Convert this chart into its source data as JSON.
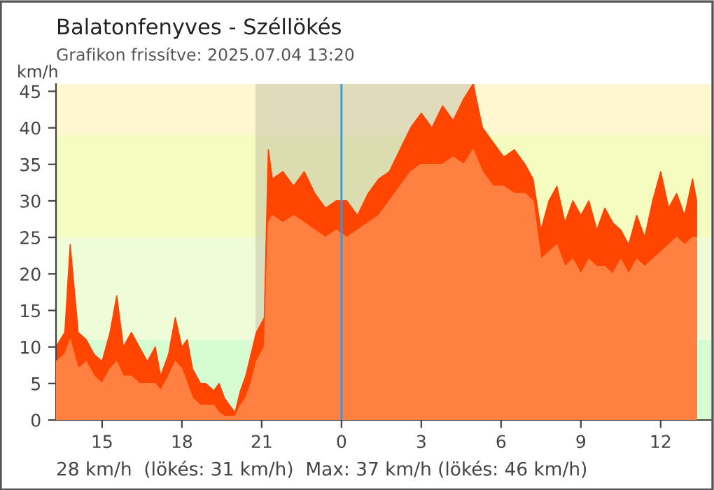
{
  "chart_data": {
    "type": "area",
    "title": "Balatonfenyves - Széllökés",
    "subtitle": "Grafikon frissítve: 2025.07.04 13:20",
    "ylabel": "km/h",
    "annotations": [
      "28 km/h  (lökés: 31 km/h)  Max: 37 km/h (lökés: 46 km/h)"
    ],
    "x": [
      "2025-07-03T13:16",
      "2025-07-03T13:36",
      "2025-07-03T13:48",
      "2025-07-03T14:06",
      "2025-07-03T14:24",
      "2025-07-03T14:42",
      "2025-07-03T15:00",
      "2025-07-03T15:18",
      "2025-07-03T15:33",
      "2025-07-03T15:48",
      "2025-07-03T16:06",
      "2025-07-03T16:24",
      "2025-07-03T16:42",
      "2025-07-03T17:00",
      "2025-07-03T17:12",
      "2025-07-03T17:30",
      "2025-07-03T17:45",
      "2025-07-03T18:00",
      "2025-07-03T18:12",
      "2025-07-03T18:24",
      "2025-07-03T18:42",
      "2025-07-03T18:54",
      "2025-07-03T19:12",
      "2025-07-03T19:24",
      "2025-07-03T19:36",
      "2025-07-03T19:48",
      "2025-07-03T20:00",
      "2025-07-03T20:12",
      "2025-07-03T20:24",
      "2025-07-03T20:36",
      "2025-07-03T20:48",
      "2025-07-03T21:06",
      "2025-07-03T21:15",
      "2025-07-03T21:24",
      "2025-07-03T21:48",
      "2025-07-03T22:12",
      "2025-07-03T22:36",
      "2025-07-03T23:00",
      "2025-07-03T23:24",
      "2025-07-03T23:48",
      "2025-07-04T00:12",
      "2025-07-04T00:36",
      "2025-07-04T01:00",
      "2025-07-04T01:24",
      "2025-07-04T01:48",
      "2025-07-04T02:12",
      "2025-07-04T02:36",
      "2025-07-04T03:00",
      "2025-07-04T03:24",
      "2025-07-04T03:48",
      "2025-07-04T04:12",
      "2025-07-04T04:36",
      "2025-07-04T04:57",
      "2025-07-04T05:18",
      "2025-07-04T05:42",
      "2025-07-04T06:06",
      "2025-07-04T06:30",
      "2025-07-04T06:54",
      "2025-07-04T07:12",
      "2025-07-04T07:30",
      "2025-07-04T07:48",
      "2025-07-04T08:06",
      "2025-07-04T08:24",
      "2025-07-04T08:42",
      "2025-07-04T09:00",
      "2025-07-04T09:18",
      "2025-07-04T09:36",
      "2025-07-04T09:54",
      "2025-07-04T10:12",
      "2025-07-04T10:30",
      "2025-07-04T10:48",
      "2025-07-04T11:06",
      "2025-07-04T11:24",
      "2025-07-04T11:42",
      "2025-07-04T12:00",
      "2025-07-04T12:18",
      "2025-07-04T12:36",
      "2025-07-04T12:54",
      "2025-07-04T13:12",
      "2025-07-04T13:21"
    ],
    "series": [
      {
        "color": "#ff4500",
        "values": [
          10,
          12,
          24,
          12,
          11,
          9,
          8,
          12,
          17,
          10,
          12,
          10,
          8,
          10,
          6,
          9,
          14,
          10,
          11,
          7,
          5,
          5,
          4,
          5,
          3,
          2,
          1,
          4,
          6,
          9,
          12,
          14,
          37,
          33,
          34,
          32,
          34,
          31,
          29,
          30,
          30,
          28,
          31,
          33,
          34,
          37,
          40,
          42,
          40,
          43,
          41,
          44,
          46,
          40,
          38,
          36,
          37,
          35,
          33,
          26,
          30,
          32,
          27,
          30,
          28,
          30,
          26,
          29,
          27,
          26,
          24,
          28,
          25,
          30,
          34,
          29,
          31,
          28,
          33,
          30
        ]
      },
      {
        "color": "#ff8040",
        "values": [
          8,
          9,
          11,
          7,
          8,
          6,
          5,
          7,
          8,
          6,
          6,
          5,
          5,
          5,
          4,
          6,
          8,
          7,
          5,
          3,
          2,
          2,
          2,
          1,
          0.5,
          0.5,
          0.5,
          2,
          3,
          5,
          8,
          10,
          27,
          28,
          27,
          28,
          27,
          26,
          25,
          26,
          25,
          26,
          27,
          28,
          30,
          32,
          34,
          35,
          35,
          35,
          36,
          35,
          37,
          34,
          32,
          32,
          31,
          31,
          30,
          22,
          23,
          24,
          21,
          22,
          20,
          22,
          21,
          21,
          20,
          22,
          20,
          22,
          21,
          22,
          23,
          24,
          25,
          24,
          25,
          25
        ]
      }
    ],
    "xlim": [
      "2025-07-03T13:16",
      "2025-07-04T13:54"
    ],
    "xticks": [
      {
        "value": "2025-07-03T15:00",
        "label": "15"
      },
      {
        "value": "2025-07-03T18:00",
        "label": "18"
      },
      {
        "value": "2025-07-03T21:00",
        "label": "21"
      },
      {
        "value": "2025-07-04T00:00",
        "label": "0"
      },
      {
        "value": "2025-07-04T03:00",
        "label": "3"
      },
      {
        "value": "2025-07-04T06:00",
        "label": "6"
      },
      {
        "value": "2025-07-04T09:00",
        "label": "9"
      },
      {
        "value": "2025-07-04T12:00",
        "label": "12"
      }
    ],
    "ylim": [
      0,
      46
    ],
    "yticks": [
      0,
      5,
      10,
      15,
      20,
      25,
      30,
      35,
      40,
      45
    ],
    "bands": [
      {
        "axis": "y",
        "from": 0,
        "to": 11,
        "color": "#d6fcd2"
      },
      {
        "axis": "y",
        "from": 11,
        "to": 25,
        "color": "#eefcd8"
      },
      {
        "axis": "y",
        "from": 25,
        "to": 39,
        "color": "#f4fcc0"
      },
      {
        "axis": "y",
        "from": 39,
        "to": 46,
        "color": "#fef7cf"
      },
      {
        "axis": "x",
        "from": "2025-07-03T20:46",
        "to": "2025-07-04T05:03",
        "color": "#bdb9a0"
      }
    ],
    "ref_lines": [
      {
        "axis": "x",
        "value": "2025-07-04T00:00",
        "color": "#3399dd"
      }
    ],
    "grid": false,
    "legend": false
  }
}
